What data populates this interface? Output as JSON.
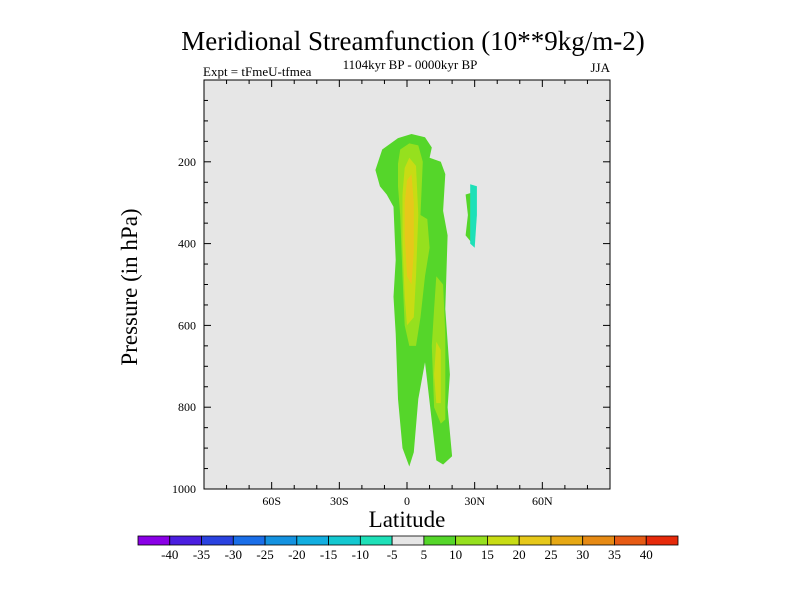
{
  "chart_data": {
    "type": "contour",
    "title": "Meridional Streamfunction (10**9kg/m-2)",
    "subtitle_left": "Expt = tFmeU-tfmea",
    "subtitle_center": "1104kyr BP - 0000kyr BP",
    "subtitle_right": "JJA",
    "xlabel": "Latitude",
    "ylabel": "Pressure (in hPa)",
    "xlim": [
      -90,
      90
    ],
    "ylim": [
      1000,
      0
    ],
    "x_ticks": [
      {
        "value": -60,
        "label": "60S"
      },
      {
        "value": -30,
        "label": "30S"
      },
      {
        "value": 0,
        "label": "0"
      },
      {
        "value": 30,
        "label": "30N"
      },
      {
        "value": 60,
        "label": "60N"
      }
    ],
    "y_ticks": [
      {
        "value": 200,
        "label": "200"
      },
      {
        "value": 400,
        "label": "400"
      },
      {
        "value": 600,
        "label": "600"
      },
      {
        "value": 800,
        "label": "800"
      },
      {
        "value": 1000,
        "label": "1000"
      }
    ],
    "colorbar": {
      "labels": [
        "-40",
        "-35",
        "-30",
        "-25",
        "-20",
        "-15",
        "-10",
        "-5",
        "5",
        "10",
        "15",
        "20",
        "25",
        "30",
        "35",
        "40"
      ],
      "colors": [
        "#8a00e6",
        "#4b1ee0",
        "#2a42e0",
        "#1a6ee8",
        "#1492e0",
        "#12aee0",
        "#14c8d0",
        "#1ee0b8",
        "#e6e6e6",
        "#55d62a",
        "#96e01e",
        "#c8dc14",
        "#e6c81a",
        "#e6a814",
        "#e68a14",
        "#e65a14",
        "#e62a0a"
      ]
    },
    "contours": [
      {
        "level": 5,
        "color": "#55d62a",
        "points": [
          [
            -12,
            260
          ],
          [
            -14,
            220
          ],
          [
            -11,
            170
          ],
          [
            -4,
            142
          ],
          [
            2,
            132
          ],
          [
            8,
            140
          ],
          [
            11,
            165
          ],
          [
            10,
            190
          ],
          [
            15,
            200
          ],
          [
            17,
            230
          ],
          [
            16,
            320
          ],
          [
            18,
            380
          ],
          [
            17,
            560
          ],
          [
            19,
            720
          ],
          [
            18,
            800
          ],
          [
            20,
            920
          ],
          [
            16,
            940
          ],
          [
            13,
            930
          ],
          [
            8,
            690
          ],
          [
            5,
            780
          ],
          [
            3,
            910
          ],
          [
            1,
            945
          ],
          [
            -2,
            900
          ],
          [
            -4,
            780
          ],
          [
            -5,
            620
          ],
          [
            -6,
            530
          ],
          [
            -5,
            440
          ],
          [
            -6,
            310
          ],
          [
            -9,
            280
          ]
        ]
      },
      {
        "level": 5,
        "color": "#55d62a",
        "points": [
          [
            26,
            280
          ],
          [
            29,
            275
          ],
          [
            30,
            330
          ],
          [
            29,
            400
          ],
          [
            26,
            380
          ],
          [
            27,
            330
          ]
        ]
      },
      {
        "level": -5,
        "color": "#1ee0b8",
        "points": [
          [
            28,
            255
          ],
          [
            31,
            260
          ],
          [
            31,
            330
          ],
          [
            30,
            410
          ],
          [
            28,
            400
          ],
          [
            28,
            330
          ]
        ]
      },
      {
        "level": 10,
        "color": "#96e01e",
        "points": [
          [
            -4,
            205
          ],
          [
            -3,
            170
          ],
          [
            1,
            155
          ],
          [
            5,
            160
          ],
          [
            7,
            200
          ],
          [
            6,
            330
          ],
          [
            9,
            340
          ],
          [
            10,
            410
          ],
          [
            8,
            480
          ],
          [
            6,
            580
          ],
          [
            4,
            650
          ],
          [
            1,
            650
          ],
          [
            -1,
            600
          ],
          [
            -2,
            480
          ],
          [
            -3,
            330
          ],
          [
            -4,
            260
          ]
        ]
      },
      {
        "level": 10,
        "color": "#96e01e",
        "points": [
          [
            13,
            480
          ],
          [
            16,
            500
          ],
          [
            17,
            620
          ],
          [
            17,
            830
          ],
          [
            15,
            840
          ],
          [
            12,
            800
          ],
          [
            11,
            650
          ],
          [
            12,
            560
          ]
        ]
      },
      {
        "level": 15,
        "color": "#c8dc14",
        "points": [
          [
            -1,
            215
          ],
          [
            1,
            190
          ],
          [
            4,
            210
          ],
          [
            5,
            330
          ],
          [
            4,
            480
          ],
          [
            3,
            580
          ],
          [
            0,
            600
          ],
          [
            -1,
            530
          ],
          [
            -2,
            400
          ],
          [
            -2,
            280
          ]
        ]
      },
      {
        "level": 15,
        "color": "#c8dc14",
        "points": [
          [
            13,
            640
          ],
          [
            15,
            660
          ],
          [
            15,
            790
          ],
          [
            13,
            790
          ],
          [
            12,
            720
          ]
        ]
      },
      {
        "level": 20,
        "color": "#e6c81a",
        "points": [
          [
            0,
            245
          ],
          [
            2,
            230
          ],
          [
            3,
            300
          ],
          [
            3,
            420
          ],
          [
            2,
            500
          ],
          [
            0,
            480
          ],
          [
            -1,
            380
          ],
          [
            -1,
            300
          ]
        ]
      }
    ]
  }
}
